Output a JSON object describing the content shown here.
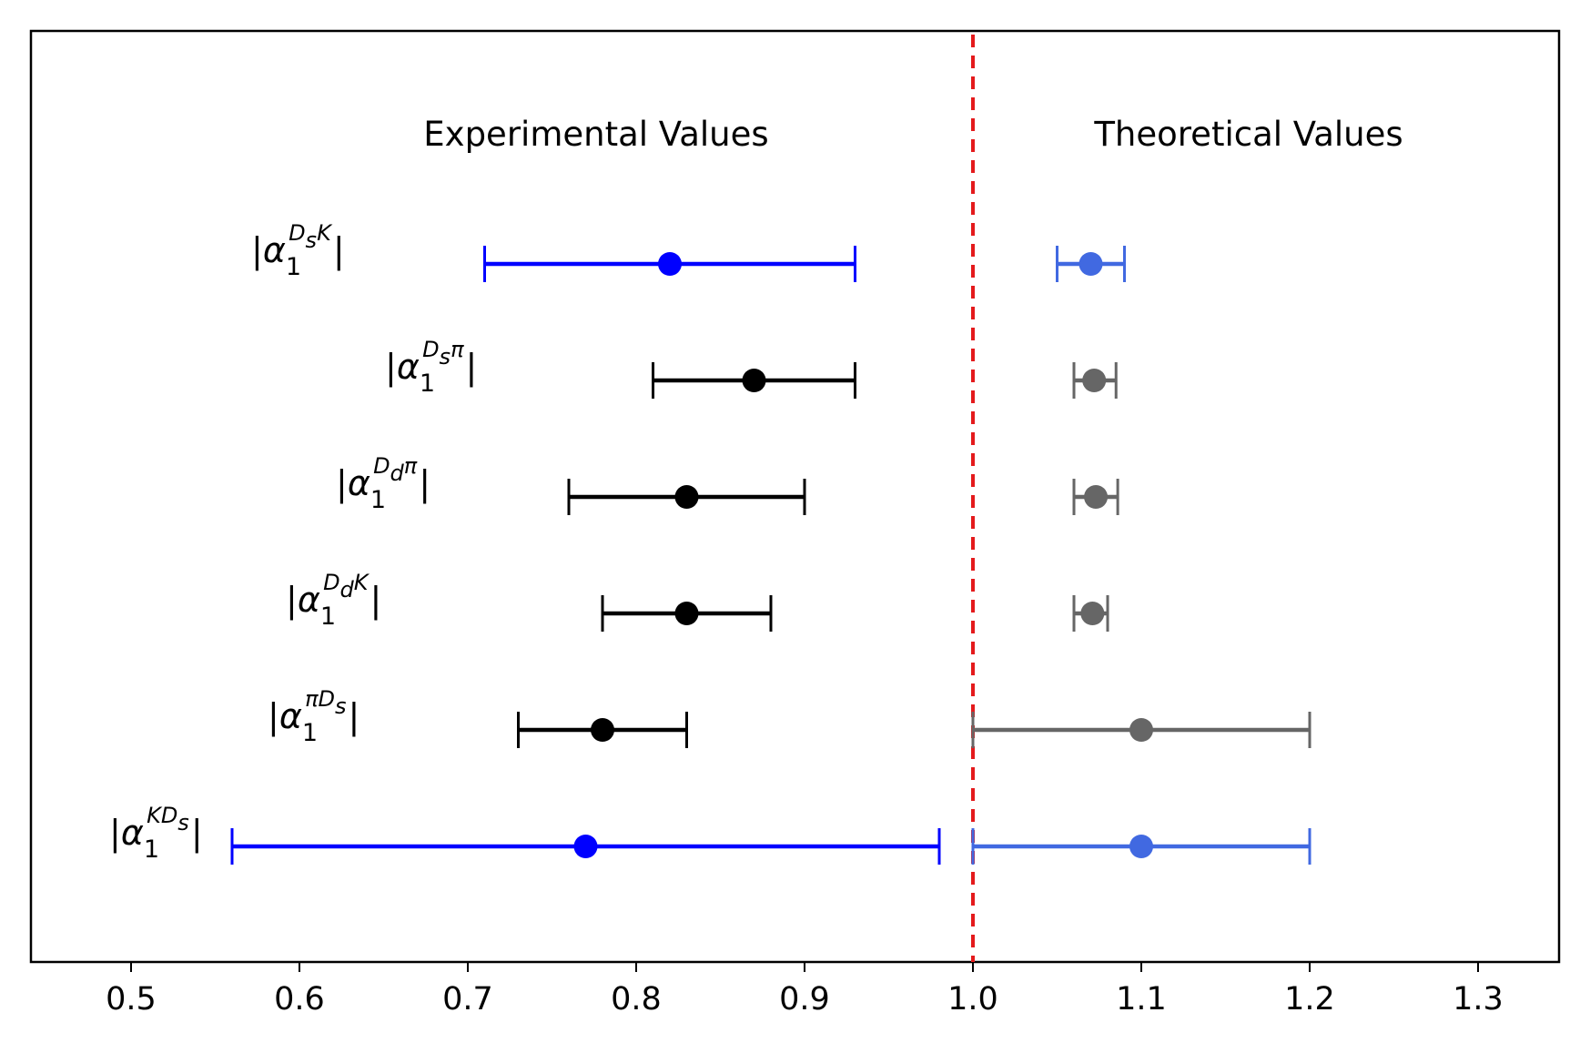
{
  "chart_data": {
    "type": "errorbar",
    "xlim": [
      0.44,
      1.35
    ],
    "xticks": [
      {
        "value": 0.5,
        "label": "0.5"
      },
      {
        "value": 0.6,
        "label": "0.6"
      },
      {
        "value": 0.7,
        "label": "0.7"
      },
      {
        "value": 0.8,
        "label": "0.8"
      },
      {
        "value": 0.9,
        "label": "0.9"
      },
      {
        "value": 1.0,
        "label": "1.0"
      },
      {
        "value": 1.1,
        "label": "1.1"
      },
      {
        "value": 1.2,
        "label": "1.2"
      },
      {
        "value": 1.3,
        "label": "1.3"
      }
    ],
    "reference_line": {
      "x": 1.0,
      "color": "#e41a1c",
      "style": "dashed"
    },
    "annotations": {
      "experimental": "Experimental Values",
      "theoretical": "Theoretical Values"
    },
    "rows": [
      {
        "symbol": "α",
        "subscript": "1",
        "superscript": "DsK",
        "sup_parts": [
          {
            "t": "D",
            "italic": true
          },
          {
            "t": "s",
            "sub": true,
            "italic": true
          },
          {
            "t": "K",
            "italic": true
          }
        ],
        "experimental": {
          "value": 0.82,
          "low": 0.71,
          "high": 0.93,
          "color": "#0000ff"
        },
        "theoretical": {
          "value": 1.07,
          "low": 1.05,
          "high": 1.09,
          "color": "#4169e1"
        }
      },
      {
        "symbol": "α",
        "subscript": "1",
        "superscript": "Dsπ",
        "sup_parts": [
          {
            "t": "D",
            "italic": true
          },
          {
            "t": "s",
            "sub": true,
            "italic": true
          },
          {
            "t": "π",
            "italic": true
          }
        ],
        "experimental": {
          "value": 0.87,
          "low": 0.81,
          "high": 0.93,
          "color": "#000000"
        },
        "theoretical": {
          "value": 1.072,
          "low": 1.06,
          "high": 1.085,
          "color": "#666666"
        }
      },
      {
        "symbol": "α",
        "subscript": "1",
        "superscript": "Ddπ",
        "sup_parts": [
          {
            "t": "D",
            "italic": true
          },
          {
            "t": "d",
            "sub": true,
            "italic": true
          },
          {
            "t": "π",
            "italic": true
          }
        ],
        "experimental": {
          "value": 0.83,
          "low": 0.76,
          "high": 0.9,
          "color": "#000000"
        },
        "theoretical": {
          "value": 1.073,
          "low": 1.06,
          "high": 1.086,
          "color": "#666666"
        }
      },
      {
        "symbol": "α",
        "subscript": "1",
        "superscript": "DdK",
        "sup_parts": [
          {
            "t": "D",
            "italic": true
          },
          {
            "t": "d",
            "sub": true,
            "italic": true
          },
          {
            "t": "K",
            "italic": true
          }
        ],
        "experimental": {
          "value": 0.83,
          "low": 0.78,
          "high": 0.88,
          "color": "#000000"
        },
        "theoretical": {
          "value": 1.071,
          "low": 1.06,
          "high": 1.08,
          "color": "#666666"
        }
      },
      {
        "symbol": "α",
        "subscript": "1",
        "superscript": "πDs",
        "sup_parts": [
          {
            "t": "π",
            "italic": true
          },
          {
            "t": "D",
            "italic": true
          },
          {
            "t": "s",
            "sub": true,
            "italic": true
          }
        ],
        "experimental": {
          "value": 0.78,
          "low": 0.73,
          "high": 0.83,
          "color": "#000000"
        },
        "theoretical": {
          "value": 1.1,
          "low": 1.0,
          "high": 1.2,
          "color": "#666666"
        }
      },
      {
        "symbol": "α",
        "subscript": "1",
        "superscript": "KDs",
        "sup_parts": [
          {
            "t": "K",
            "italic": true
          },
          {
            "t": "D",
            "italic": true
          },
          {
            "t": "s",
            "sub": true,
            "italic": true
          }
        ],
        "experimental": {
          "value": 0.77,
          "low": 0.56,
          "high": 0.98,
          "color": "#0000ff"
        },
        "theoretical": {
          "value": 1.1,
          "low": 1.0,
          "high": 1.2,
          "color": "#4169e1"
        }
      }
    ]
  }
}
